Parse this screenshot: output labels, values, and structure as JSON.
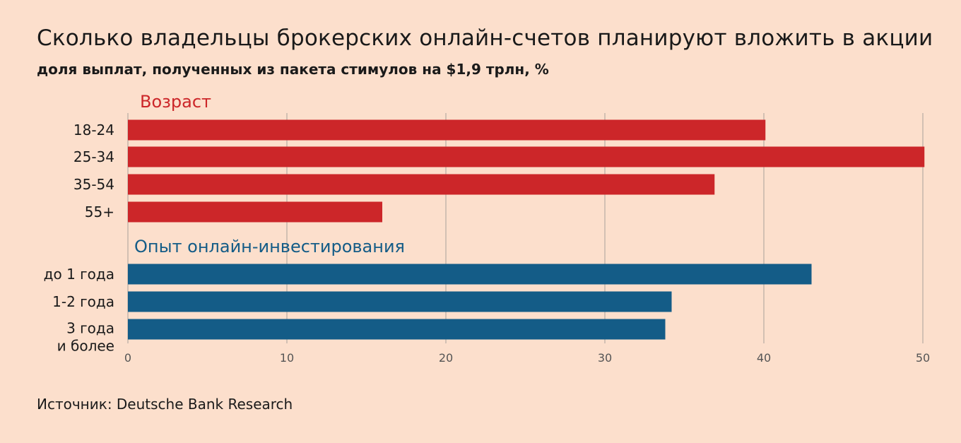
{
  "header": {
    "title": "Сколько владельцы брокерских онлайн-счетов планируют вложить в акции",
    "subtitle": "доля выплат, полученных из пакета стимулов на $1,9 трлн, %"
  },
  "footer": {
    "source": "Источник: Deutsche Bank Research"
  },
  "colors": {
    "age": "#cc2629",
    "experience": "#145c87",
    "grid": "#a8a09a",
    "background": "#fcdfcc"
  },
  "chart_data": {
    "type": "bar",
    "orientation": "horizontal",
    "xlim": [
      0,
      50
    ],
    "xticks": [
      0,
      10,
      20,
      30,
      40,
      50
    ],
    "grid": true,
    "groups": [
      {
        "name": "Возраст",
        "color": "#cc2629",
        "categories": [
          "18-24",
          "25-34",
          "35-54",
          "55+"
        ],
        "values": [
          40.1,
          50.1,
          36.9,
          16.0
        ]
      },
      {
        "name": "Опыт онлайн-инвестирования",
        "color": "#145c87",
        "categories": [
          "до 1 года",
          "1-2 года",
          "3 года\nи более"
        ],
        "values": [
          43.0,
          34.2,
          33.8
        ]
      }
    ]
  }
}
